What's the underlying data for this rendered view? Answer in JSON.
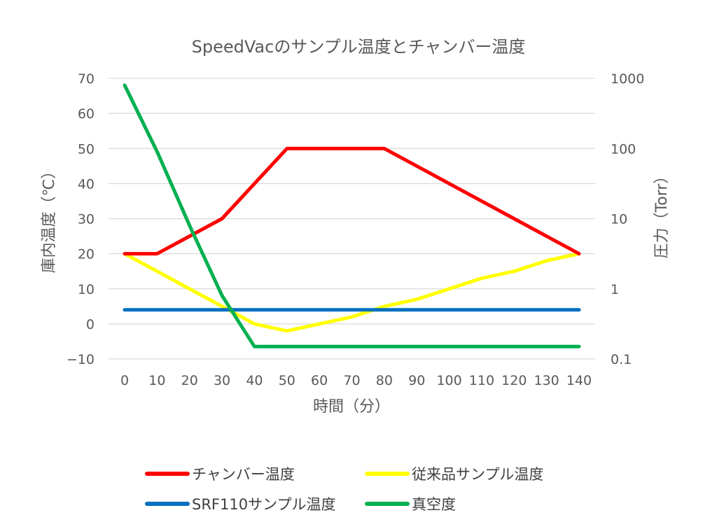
{
  "chart_data": {
    "type": "line",
    "title": "SpeedVacのサンプル温度とチャンバー温度",
    "xlabel": "時間（分）",
    "ylabel": "庫内温度（℃）",
    "y2label": "圧力（Torr）",
    "x": [
      0,
      10,
      20,
      30,
      40,
      50,
      60,
      70,
      80,
      90,
      100,
      110,
      120,
      130,
      140
    ],
    "x_tick_labels": [
      "0",
      "10",
      "20",
      "30",
      "40",
      "50",
      "60",
      "70",
      "80",
      "90",
      "100",
      "110",
      "120",
      "130",
      "140"
    ],
    "ylim": [
      -10,
      70
    ],
    "y_ticks": [
      -10,
      0,
      10,
      20,
      30,
      40,
      50,
      60,
      70
    ],
    "y_tick_labels": [
      "−10",
      "0",
      "10",
      "20",
      "30",
      "40",
      "50",
      "60",
      "70"
    ],
    "y2_scale": "log",
    "y2lim": [
      0.1,
      1000
    ],
    "y2_ticks": [
      0.1,
      1,
      10,
      100,
      1000
    ],
    "y2_tick_labels": [
      "0.1",
      "1",
      "10",
      "100",
      "1000"
    ],
    "grid": true,
    "legend_position": "bottom",
    "series": [
      {
        "name": "チャンバー温度",
        "axis": "left",
        "color": "#ff0000",
        "values": [
          20,
          20,
          25,
          30,
          40,
          50,
          50,
          50,
          50,
          45,
          40,
          35,
          30,
          25,
          20
        ]
      },
      {
        "name": "従来品サンプル温度",
        "axis": "left",
        "color": "#ffff00",
        "values": [
          20,
          15,
          10,
          5,
          0,
          -2,
          0,
          2,
          5,
          7,
          10,
          13,
          15,
          18,
          20
        ]
      },
      {
        "name": "SRF110サンプル温度",
        "axis": "left",
        "color": "#0070c0",
        "values": [
          4,
          4,
          4,
          4,
          4,
          4,
          4,
          4,
          4,
          4,
          4,
          4,
          4,
          4,
          4
        ]
      },
      {
        "name": "真空度",
        "axis": "right",
        "color": "#00b050",
        "values": [
          800,
          90,
          8,
          0.8,
          0.15,
          0.15,
          0.15,
          0.15,
          0.15,
          0.15,
          0.15,
          0.15,
          0.15,
          0.15,
          0.15
        ]
      }
    ]
  }
}
